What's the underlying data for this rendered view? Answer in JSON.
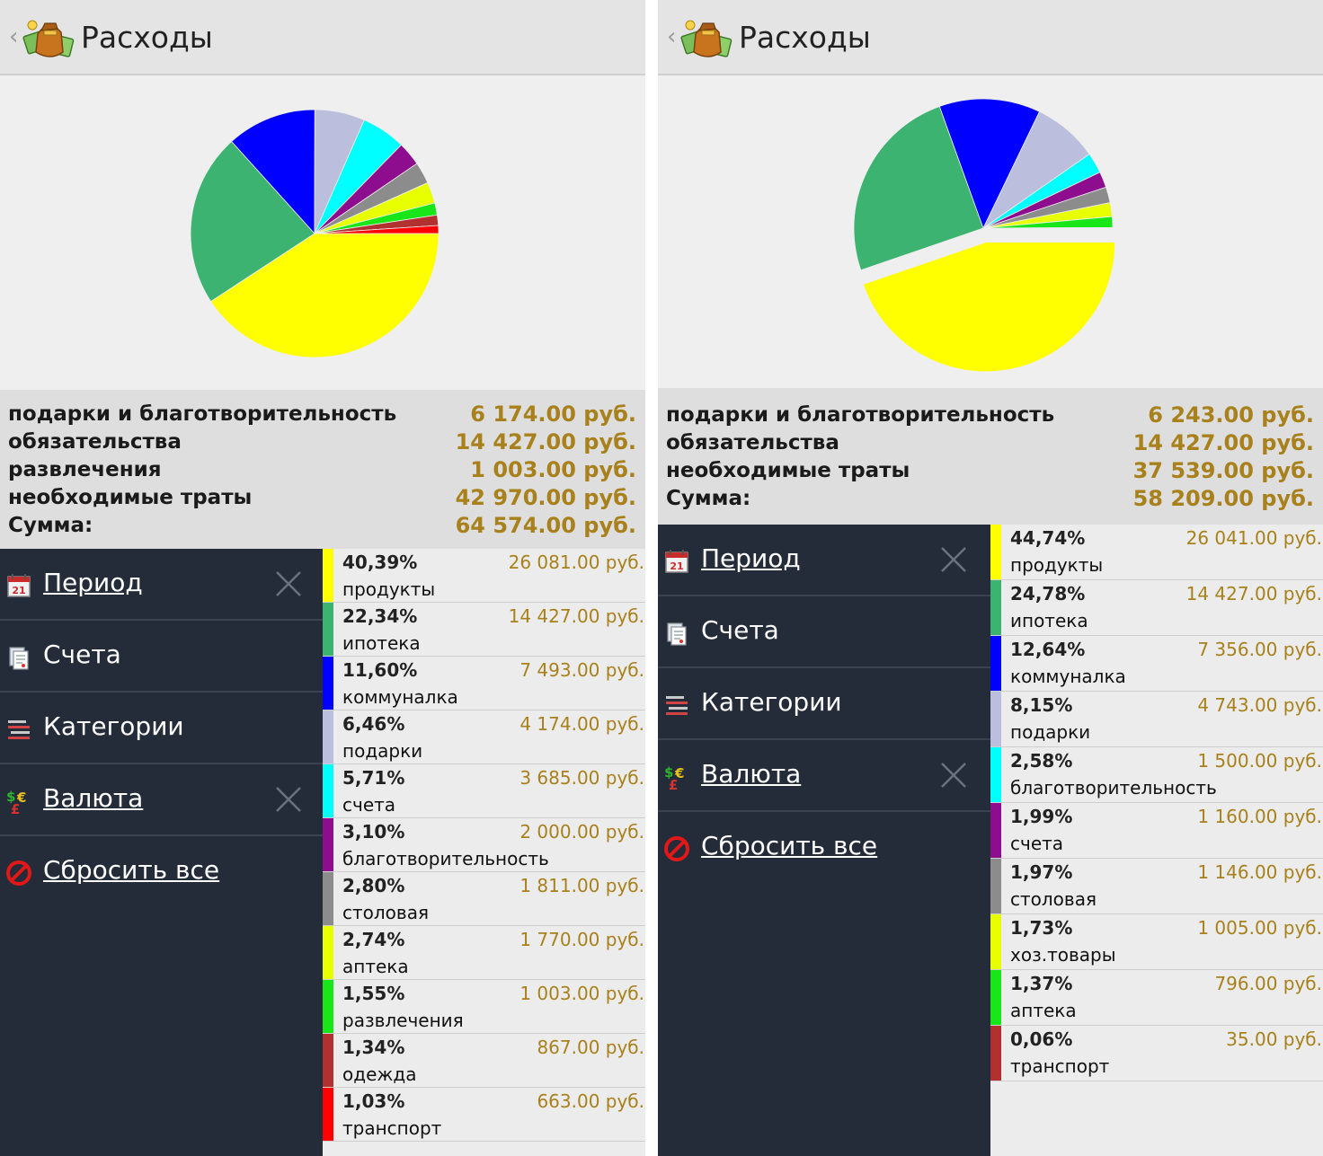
{
  "left": {
    "header": {
      "title": "Расходы",
      "back_glyph": "‹",
      "icon": "money-bag-icon"
    },
    "chart_data": {
      "type": "pie",
      "slices": [
        {
          "label": "продукты",
          "percent": 40.39,
          "value": 26081.0,
          "color": "#ffff00"
        },
        {
          "label": "ипотека",
          "percent": 22.34,
          "value": 14427.0,
          "color": "#3cb371"
        },
        {
          "label": "коммуналка",
          "percent": 11.6,
          "value": 7493.0,
          "color": "#0000ff"
        },
        {
          "label": "подарки",
          "percent": 6.46,
          "value": 4174.0,
          "color": "#bbbedd"
        },
        {
          "label": "счета",
          "percent": 5.71,
          "value": 3685.0,
          "color": "#00ffff"
        },
        {
          "label": "благотворительность",
          "percent": 3.1,
          "value": 2000.0,
          "color": "#8e0c8e"
        },
        {
          "label": "столовая",
          "percent": 2.8,
          "value": 1811.0,
          "color": "#8c8c8c"
        },
        {
          "label": "аптека",
          "percent": 2.74,
          "value": 1770.0,
          "color": "#e8ff00"
        },
        {
          "label": "развлечения",
          "percent": 1.55,
          "value": 1003.0,
          "color": "#19e619"
        },
        {
          "label": "одежда",
          "percent": 1.34,
          "value": 867.0,
          "color": "#b23030"
        },
        {
          "label": "транспорт",
          "percent": 1.03,
          "value": 663.0,
          "color": "#ff0000"
        }
      ]
    },
    "summary": [
      {
        "label": "подарки и благотворительность",
        "value": "6 174.00 руб."
      },
      {
        "label": "обязательства",
        "value": "14 427.00 руб."
      },
      {
        "label": "развлечения",
        "value": "1 003.00 руб."
      },
      {
        "label": "необходимые траты",
        "value": "42 970.00 руб."
      },
      {
        "label": "Сумма:",
        "value": "64 574.00 руб."
      }
    ],
    "menu": [
      {
        "label": "Период",
        "icon": "calendar-icon",
        "link": true,
        "clear": true
      },
      {
        "label": "Счета",
        "icon": "accounts-icon",
        "link": false,
        "clear": false
      },
      {
        "label": "Категории",
        "icon": "categories-icon",
        "link": false,
        "clear": false
      },
      {
        "label": "Валюта",
        "icon": "currency-icon",
        "link": true,
        "clear": true
      },
      {
        "label": "Сбросить все",
        "icon": "reset-icon",
        "link": true,
        "clear": false
      }
    ],
    "list": [
      {
        "pct": "40,39%",
        "name": "продукты",
        "amount": "26 081.00 руб.",
        "color": "#ffff00"
      },
      {
        "pct": "22,34%",
        "name": "ипотека",
        "amount": "14 427.00 руб.",
        "color": "#3cb371"
      },
      {
        "pct": "11,60%",
        "name": "коммуналка",
        "amount": "7 493.00 руб.",
        "color": "#0000ff"
      },
      {
        "pct": "6,46%",
        "name": "подарки",
        "amount": "4 174.00 руб.",
        "color": "#bbbedd"
      },
      {
        "pct": "5,71%",
        "name": "счета",
        "amount": "3 685.00 руб.",
        "color": "#00ffff"
      },
      {
        "pct": "3,10%",
        "name": "благотворительность",
        "amount": "2 000.00 руб.",
        "color": "#8e0c8e"
      },
      {
        "pct": "2,80%",
        "name": "столовая",
        "amount": "1 811.00 руб.",
        "color": "#8c8c8c"
      },
      {
        "pct": "2,74%",
        "name": "аптека",
        "amount": "1 770.00 руб.",
        "color": "#e8ff00"
      },
      {
        "pct": "1,55%",
        "name": "развлечения",
        "amount": "1 003.00 руб.",
        "color": "#19e619"
      },
      {
        "pct": "1,34%",
        "name": "одежда",
        "amount": "867.00 руб.",
        "color": "#b23030"
      },
      {
        "pct": "1,03%",
        "name": "транспорт",
        "amount": "663.00 руб.",
        "color": "#ff0000"
      }
    ]
  },
  "right": {
    "header": {
      "title": "Расходы",
      "back_glyph": "‹",
      "icon": "money-bag-icon"
    },
    "chart_data": {
      "type": "pie",
      "exploded": "продукты",
      "slices": [
        {
          "label": "продукты",
          "percent": 44.74,
          "value": 26041.0,
          "color": "#ffff00"
        },
        {
          "label": "ипотека",
          "percent": 24.78,
          "value": 14427.0,
          "color": "#3cb371"
        },
        {
          "label": "коммуналка",
          "percent": 12.64,
          "value": 7356.0,
          "color": "#0000ff"
        },
        {
          "label": "подарки",
          "percent": 8.15,
          "value": 4743.0,
          "color": "#bbbedd"
        },
        {
          "label": "благотворительность",
          "percent": 2.58,
          "value": 1500.0,
          "color": "#00ffff"
        },
        {
          "label": "счета",
          "percent": 1.99,
          "value": 1160.0,
          "color": "#8e0c8e"
        },
        {
          "label": "столовая",
          "percent": 1.97,
          "value": 1146.0,
          "color": "#8c8c8c"
        },
        {
          "label": "хоз.товары",
          "percent": 1.73,
          "value": 1005.0,
          "color": "#e8ff00"
        },
        {
          "label": "аптека",
          "percent": 1.37,
          "value": 796.0,
          "color": "#19e619"
        },
        {
          "label": "транспорт",
          "percent": 0.06,
          "value": 35.0,
          "color": "#b23030"
        }
      ]
    },
    "summary": [
      {
        "label": "подарки и благотворительность",
        "value": "6 243.00 руб."
      },
      {
        "label": "обязательства",
        "value": "14 427.00 руб."
      },
      {
        "label": "необходимые траты",
        "value": "37 539.00 руб."
      },
      {
        "label": "Сумма:",
        "value": "58 209.00 руб."
      }
    ],
    "menu": [
      {
        "label": "Период",
        "icon": "calendar-icon",
        "link": true,
        "clear": true
      },
      {
        "label": "Счета",
        "icon": "accounts-icon",
        "link": false,
        "clear": false
      },
      {
        "label": "Категории",
        "icon": "categories-icon",
        "link": false,
        "clear": false
      },
      {
        "label": "Валюта",
        "icon": "currency-icon",
        "link": true,
        "clear": true
      },
      {
        "label": "Сбросить все",
        "icon": "reset-icon",
        "link": true,
        "clear": false
      }
    ],
    "list": [
      {
        "pct": "44,74%",
        "name": "продукты",
        "amount": "26 041.00 руб.",
        "color": "#ffff00"
      },
      {
        "pct": "24,78%",
        "name": "ипотека",
        "amount": "14 427.00 руб.",
        "color": "#3cb371"
      },
      {
        "pct": "12,64%",
        "name": "коммуналка",
        "amount": "7 356.00 руб.",
        "color": "#0000ff"
      },
      {
        "pct": "8,15%",
        "name": "подарки",
        "amount": "4 743.00 руб.",
        "color": "#bbbedd"
      },
      {
        "pct": "2,58%",
        "name": "благотворительность",
        "amount": "1 500.00 руб.",
        "color": "#00ffff"
      },
      {
        "pct": "1,99%",
        "name": "счета",
        "amount": "1 160.00 руб.",
        "color": "#8e0c8e"
      },
      {
        "pct": "1,97%",
        "name": "столовая",
        "amount": "1 146.00 руб.",
        "color": "#8c8c8c"
      },
      {
        "pct": "1,73%",
        "name": "хоз.товары",
        "amount": "1 005.00 руб.",
        "color": "#e8ff00"
      },
      {
        "pct": "1,37%",
        "name": "аптека",
        "amount": "796.00 руб.",
        "color": "#19e619"
      },
      {
        "pct": "0,06%",
        "name": "транспорт",
        "amount": "35.00 руб.",
        "color": "#b23030"
      }
    ]
  }
}
